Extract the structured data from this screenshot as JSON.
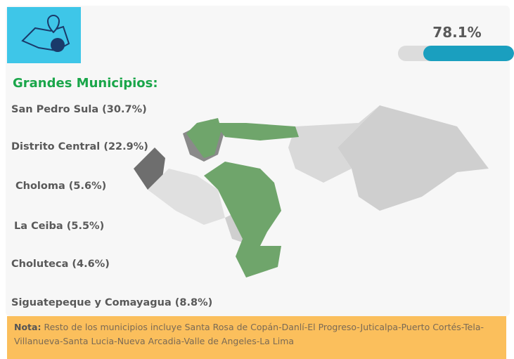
{
  "progress": {
    "value": 78.1,
    "label": "78.1%"
  },
  "heading": "Grandes Municipios:",
  "municipios": [
    "San Pedro Sula (30.7%)",
    "Distrito Central (22.9%)",
    "Choloma (5.6%)",
    "La Ceiba (5.5%)",
    "Choluteca (4.6%)",
    "Siguatepeque y Comayagua (8.8%)"
  ],
  "note": {
    "label": "Nota:",
    "text": "Resto de los municipios incluye Santa Rosa de Copán-Danlí-El Progreso-Juticalpa-Puerto Cortés-Tela-Villanueva-Santa Lucia-Nueva Arcadia-Valle de Angeles-La Lima"
  }
}
